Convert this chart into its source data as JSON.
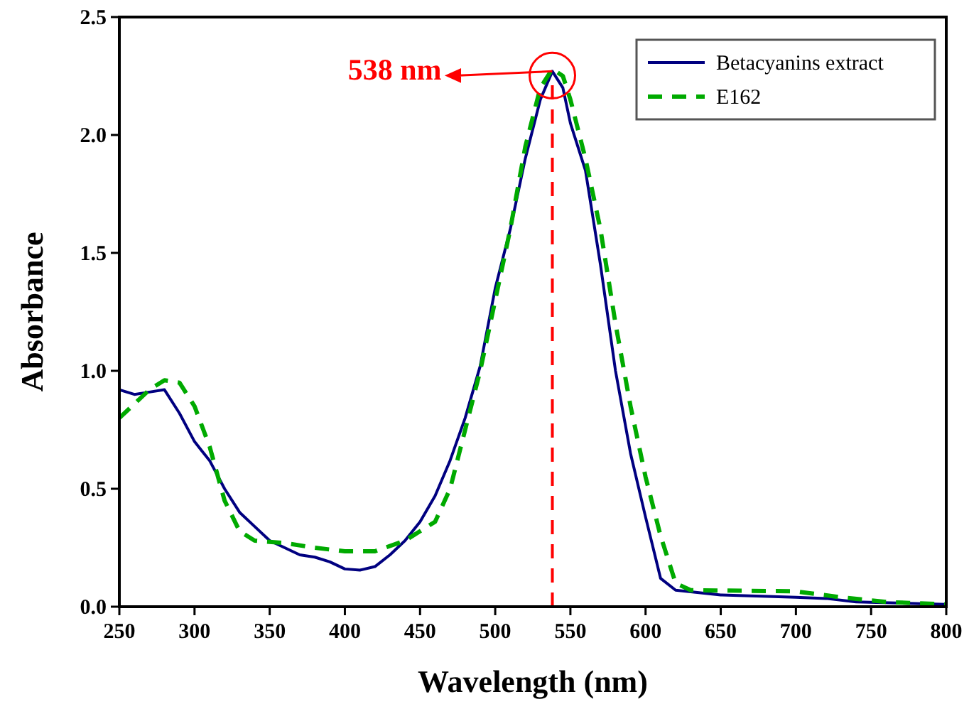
{
  "chart_data": {
    "type": "line",
    "xlabel": "Wavelength (nm)",
    "ylabel": "Absorbance",
    "xlim": [
      250,
      800
    ],
    "ylim": [
      0,
      2.5
    ],
    "xticks": [
      250,
      300,
      350,
      400,
      450,
      500,
      550,
      600,
      650,
      700,
      750,
      800
    ],
    "yticks": [
      {
        "value": 0,
        "label": "0.0"
      },
      {
        "value": 0.5,
        "label": "0.5"
      },
      {
        "value": 1,
        "label": "1.0"
      },
      {
        "value": 1.5,
        "label": "1.5"
      },
      {
        "value": 2,
        "label": "2.0"
      },
      {
        "value": 2.5,
        "label": "2.5"
      }
    ],
    "grid": false,
    "legend": "top right",
    "marker": "none",
    "series": [
      {
        "name": "Betacyanins extract",
        "color": "#000080",
        "line_style": "solid",
        "x": [
          250,
          260,
          270,
          280,
          290,
          300,
          305,
          310,
          320,
          330,
          340,
          350,
          360,
          370,
          380,
          390,
          400,
          410,
          420,
          430,
          440,
          450,
          460,
          470,
          480,
          490,
          500,
          510,
          520,
          530,
          538,
          545,
          550,
          560,
          570,
          580,
          590,
          600,
          610,
          620,
          650,
          700,
          720,
          740,
          800
        ],
        "values": [
          0.92,
          0.9,
          0.91,
          0.92,
          0.82,
          0.7,
          0.66,
          0.62,
          0.5,
          0.4,
          0.34,
          0.28,
          0.25,
          0.22,
          0.21,
          0.19,
          0.16,
          0.155,
          0.17,
          0.22,
          0.28,
          0.36,
          0.47,
          0.62,
          0.8,
          1.02,
          1.35,
          1.6,
          1.9,
          2.15,
          2.27,
          2.2,
          2.05,
          1.85,
          1.45,
          1.0,
          0.65,
          0.38,
          0.12,
          0.07,
          0.05,
          0.04,
          0.035,
          0.02,
          0.01
        ]
      },
      {
        "name": "E162",
        "color": "#00aa00",
        "line_style": "dashed",
        "x": [
          250,
          270,
          280,
          290,
          300,
          310,
          320,
          330,
          340,
          360,
          380,
          400,
          420,
          440,
          460,
          470,
          480,
          490,
          500,
          510,
          520,
          530,
          538,
          545,
          550,
          560,
          570,
          580,
          590,
          600,
          610,
          620,
          630,
          700,
          730,
          760,
          800
        ],
        "values": [
          0.8,
          0.92,
          0.96,
          0.95,
          0.85,
          0.68,
          0.45,
          0.32,
          0.28,
          0.27,
          0.25,
          0.235,
          0.235,
          0.28,
          0.36,
          0.5,
          0.75,
          1.0,
          1.3,
          1.6,
          1.95,
          2.2,
          2.28,
          2.25,
          2.15,
          1.9,
          1.6,
          1.2,
          0.85,
          0.55,
          0.3,
          0.1,
          0.07,
          0.065,
          0.04,
          0.02,
          0.01
        ]
      }
    ],
    "ref_lines": [
      {
        "axis": "x",
        "value": 538,
        "color": "#ff0000",
        "line_style": "dashed"
      }
    ],
    "annotations": [
      {
        "text": "538 nm",
        "x": 538,
        "y": 2.27
      }
    ]
  }
}
